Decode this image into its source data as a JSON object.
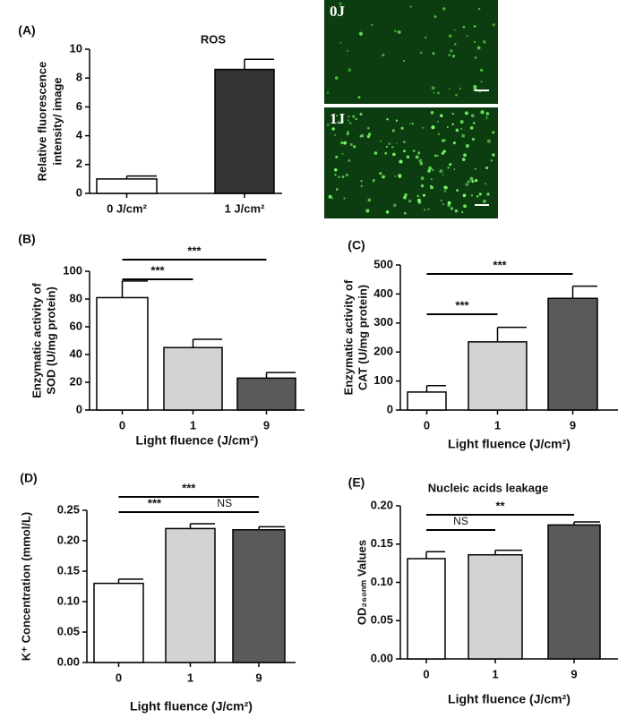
{
  "chart_data": [
    {
      "type": "bar",
      "panel_label": "(A)",
      "title": "ROS",
      "ylabel": [
        "Relative fluorescence",
        "intensity/ image"
      ],
      "categories": [
        "0 J/cm²",
        "1 J/cm²"
      ],
      "values": [
        1.0,
        8.6
      ],
      "errors": [
        0.2,
        0.7
      ],
      "colors": [
        "#ffffff",
        "#333333"
      ],
      "ylim": [
        0,
        10
      ],
      "yticks": [
        0,
        2,
        4,
        6,
        8,
        10
      ],
      "annotations": []
    },
    {
      "type": "bar",
      "panel_label": "(B)",
      "ylabel": [
        "Enzymatic activity of",
        "SOD (U/mg protein)"
      ],
      "xlabel": "Light fluence (J/cm²)",
      "categories": [
        "0",
        "1",
        "9"
      ],
      "values": [
        81,
        45,
        23
      ],
      "errors": [
        12,
        6,
        4
      ],
      "colors": [
        "#ffffff",
        "#d3d3d3",
        "#5a5a5a"
      ],
      "ylim": [
        0,
        100
      ],
      "yticks": [
        0,
        20,
        40,
        60,
        80,
        100
      ],
      "annotations": [
        {
          "text": "***",
          "between": [
            "0",
            "1"
          ]
        },
        {
          "text": "***",
          "between": [
            "0",
            "9"
          ]
        }
      ]
    },
    {
      "type": "bar",
      "panel_label": "(C)",
      "ylabel": [
        "Enzymatic activity of",
        "CAT (U/mg protein)"
      ],
      "xlabel": "Light fluence (J/cm²)",
      "categories": [
        "0",
        "1",
        "9"
      ],
      "values": [
        62,
        235,
        385
      ],
      "errors": [
        22,
        50,
        42
      ],
      "colors": [
        "#ffffff",
        "#d3d3d3",
        "#5a5a5a"
      ],
      "ylim": [
        0,
        500
      ],
      "yticks": [
        0,
        100,
        200,
        300,
        400,
        500
      ],
      "annotations": [
        {
          "text": "***",
          "between": [
            "0",
            "1"
          ]
        },
        {
          "text": "***",
          "between": [
            "0",
            "9"
          ]
        }
      ]
    },
    {
      "type": "bar",
      "panel_label": "(D)",
      "ylabel": [
        "K⁺ Concentration (mmol/L)"
      ],
      "xlabel": "Light fluence (J/cm²)",
      "categories": [
        "0",
        "1",
        "9"
      ],
      "values": [
        0.13,
        0.22,
        0.218
      ],
      "errors": [
        0.007,
        0.008,
        0.005
      ],
      "colors": [
        "#ffffff",
        "#d3d3d3",
        "#5a5a5a"
      ],
      "ylim": [
        0,
        0.25
      ],
      "yticks": [
        {
          "value": 0,
          "label": "0.00"
        },
        0.05,
        {
          "value": 0.1,
          "label": "0.10"
        },
        0.15,
        {
          "value": 0.2,
          "label": "0.20"
        },
        0.25
      ],
      "annotations": [
        {
          "text": "***",
          "between": [
            "0",
            "1"
          ]
        },
        {
          "text": "***",
          "between": [
            "0",
            "9"
          ]
        },
        {
          "text": "NS",
          "between": [
            "1",
            "9"
          ]
        }
      ]
    },
    {
      "type": "bar",
      "panel_label": "(E)",
      "title": "Nucleic acids leakage",
      "ylabel": [
        "OD₂₆₀ₙₘ Values"
      ],
      "xlabel": "Light fluence (J/cm²)",
      "categories": [
        "0",
        "1",
        "9"
      ],
      "values": [
        0.131,
        0.136,
        0.175
      ],
      "errors": [
        0.009,
        0.006,
        0.004
      ],
      "colors": [
        "#ffffff",
        "#d3d3d3",
        "#5a5a5a"
      ],
      "ylim": [
        0,
        0.2
      ],
      "yticks": [
        {
          "value": 0,
          "label": "0.00"
        },
        0.05,
        {
          "value": 0.1,
          "label": "0.10"
        },
        0.15,
        {
          "value": 0.2,
          "label": "0.20"
        }
      ],
      "annotations": [
        {
          "text": "NS",
          "between": [
            "0",
            "1"
          ]
        },
        {
          "text": "**",
          "between": [
            "0",
            "9"
          ]
        }
      ]
    }
  ],
  "micrographs": [
    {
      "label": "0J"
    },
    {
      "label": "1J"
    }
  ]
}
